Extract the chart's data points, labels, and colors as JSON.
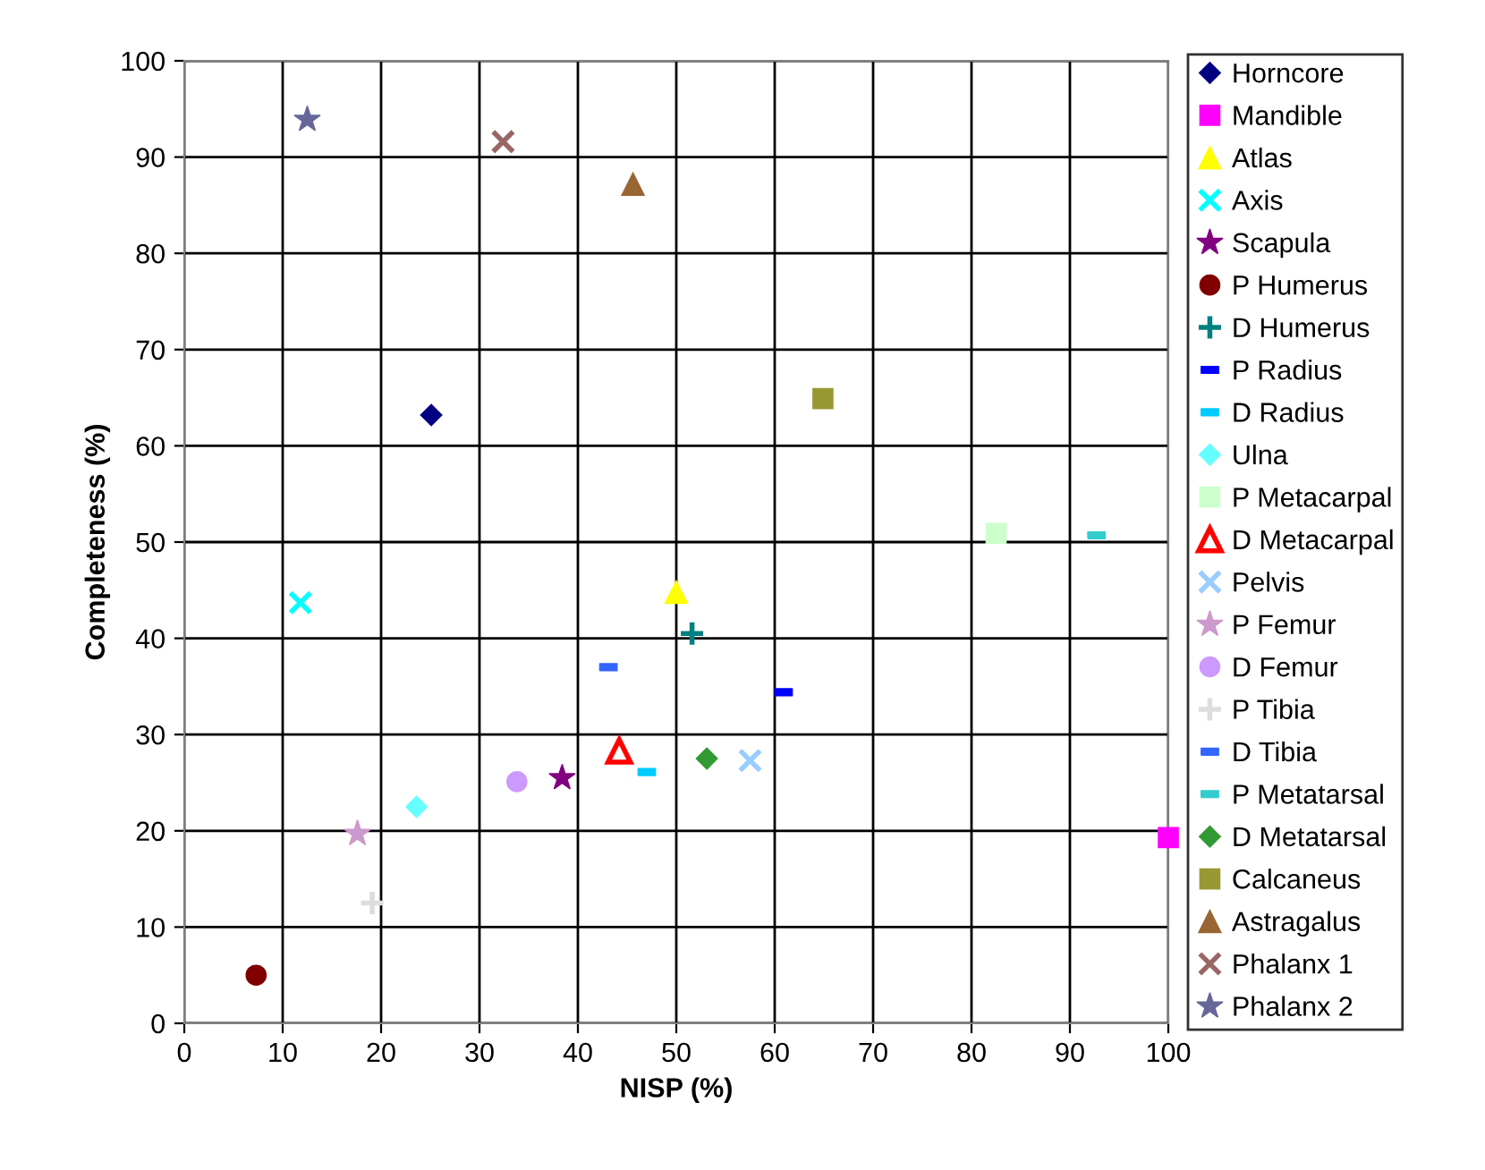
{
  "chart_data": {
    "type": "scatter",
    "xlabel": "NISP (%)",
    "ylabel": "Completeness (%)",
    "xlim": [
      0,
      100
    ],
    "ylim": [
      0,
      100
    ],
    "xticks": [
      0,
      10,
      20,
      30,
      40,
      50,
      60,
      70,
      80,
      90,
      100
    ],
    "yticks": [
      0,
      10,
      20,
      30,
      40,
      50,
      60,
      70,
      80,
      90,
      100
    ],
    "grid": true,
    "legend": "right",
    "series": [
      {
        "name": "Horncore",
        "color": "#000080",
        "marker": "diamond",
        "x": [
          25.1
        ],
        "values": [
          63.2
        ]
      },
      {
        "name": "Mandible",
        "color": "#ff00ff",
        "marker": "square",
        "x": [
          100
        ],
        "values": [
          19.3
        ]
      },
      {
        "name": "Atlas",
        "color": "#ffff00",
        "marker": "triangle",
        "x": [
          50
        ],
        "values": [
          44.8
        ]
      },
      {
        "name": "Axis",
        "color": "#00ffff",
        "marker": "cross",
        "x": [
          11.8
        ],
        "values": [
          43.7
        ]
      },
      {
        "name": "Scapula",
        "color": "#800080",
        "marker": "star",
        "x": [
          38.4
        ],
        "values": [
          25.5
        ]
      },
      {
        "name": "P Humerus",
        "color": "#800000",
        "marker": "circle",
        "x": [
          7.3
        ],
        "values": [
          5.0
        ]
      },
      {
        "name": "D Humerus",
        "color": "#008080",
        "marker": "plus",
        "x": [
          51.6
        ],
        "values": [
          40.5
        ]
      },
      {
        "name": "P Radius",
        "color": "#0000ff",
        "x": [
          60.9
        ],
        "values": [
          34.4
        ]
      },
      {
        "name": "D Radius",
        "color": "#00ccff",
        "x": [
          47.0
        ],
        "values": [
          26.1
        ]
      },
      {
        "name": "Ulna",
        "color": "#66ffff",
        "marker": "diamond",
        "x": [
          23.6
        ],
        "values": [
          22.5
        ]
      },
      {
        "name": "P Metacarpal",
        "color": "#ccffcc",
        "marker": "square",
        "x": [
          82.5
        ],
        "values": [
          50.9
        ]
      },
      {
        "name": "D Metacarpal",
        "color": "#ff0000",
        "marker": "triangle-open",
        "x": [
          44.2
        ],
        "values": [
          28.3
        ]
      },
      {
        "name": "Pelvis",
        "color": "#99ccff",
        "marker": "cross",
        "x": [
          57.5
        ],
        "values": [
          27.3
        ]
      },
      {
        "name": "P Femur",
        "color": "#cc99cc",
        "marker": "star",
        "x": [
          17.6
        ],
        "values": [
          19.7
        ]
      },
      {
        "name": "D Femur",
        "color": "#cc99ff",
        "marker": "circle",
        "x": [
          33.8
        ],
        "values": [
          25.1
        ]
      },
      {
        "name": "P Tibia",
        "color": "#dddddd",
        "marker": "plus",
        "x": [
          19.1
        ],
        "values": [
          12.5
        ]
      },
      {
        "name": "D Tibia",
        "color": "#3366ff",
        "x": [
          43.1
        ],
        "values": [
          37.0
        ]
      },
      {
        "name": "P Metatarsal",
        "color": "#33cccc",
        "x": [
          92.7
        ],
        "values": [
          50.7
        ]
      },
      {
        "name": "D Metatarsal",
        "color": "#339933",
        "marker": "diamond",
        "x": [
          53.1
        ],
        "values": [
          27.5
        ]
      },
      {
        "name": "Calcaneus",
        "color": "#999933",
        "marker": "square",
        "x": [
          64.9
        ],
        "values": [
          64.9
        ]
      },
      {
        "name": "Astragalus",
        "color": "#996633",
        "marker": "triangle",
        "x": [
          45.6
        ],
        "values": [
          87.2
        ]
      },
      {
        "name": "Phalanx 1",
        "color": "#996666",
        "marker": "cross",
        "x": [
          32.4
        ],
        "values": [
          91.6
        ]
      },
      {
        "name": "Phalanx 2",
        "color": "#666699",
        "marker": "star",
        "x": [
          12.5
        ],
        "values": [
          93.9
        ]
      }
    ]
  }
}
